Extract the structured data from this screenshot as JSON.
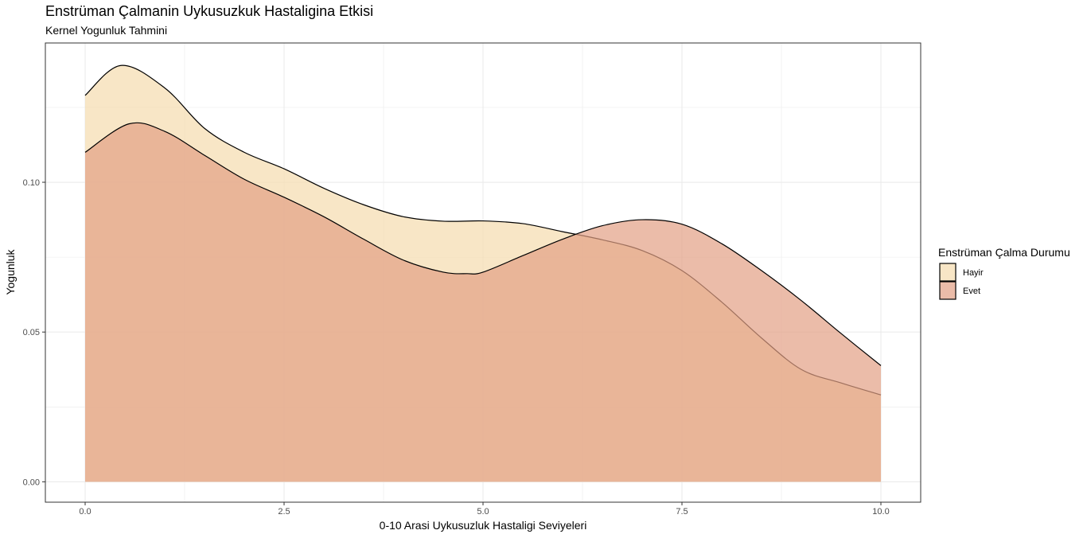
{
  "chart_data": {
    "type": "area",
    "subtype": "density",
    "title": "Enstrüman Çalmanin Uykusuzkuk Hastaligina Etkisi",
    "subtitle": "Kernel Yogunluk Tahmini",
    "xlabel": "0-10 Arasi Uykusuzluk Hastaligi Seviyeleri",
    "ylabel": "Yogunluk",
    "xlim": [
      -0.5,
      10.5
    ],
    "ylim": [
      -0.0068,
      0.1465
    ],
    "x_ticks": [
      0.0,
      2.5,
      5.0,
      7.5,
      10.0
    ],
    "x_tick_labels": [
      "0.0",
      "2.5",
      "5.0",
      "7.5",
      "10.0"
    ],
    "y_ticks": [
      0.0,
      0.05,
      0.1
    ],
    "y_tick_labels": [
      "0.00",
      "0.05",
      "0.10"
    ],
    "grid": true,
    "legend_title": "Enstrüman Çalma Durumu",
    "legend_position": "right",
    "series": [
      {
        "name": "Hayir",
        "color": "#f5deb3",
        "x": [
          0,
          0.45,
          1,
          1.5,
          2,
          2.5,
          3,
          3.5,
          4,
          4.5,
          5,
          5.5,
          6,
          6.5,
          7,
          7.5,
          8,
          8.5,
          9,
          9.5,
          10
        ],
        "y": [
          0.129,
          0.139,
          0.1315,
          0.118,
          0.11,
          0.1045,
          0.098,
          0.0925,
          0.0885,
          0.087,
          0.0871,
          0.0862,
          0.0835,
          0.0808,
          0.0772,
          0.0705,
          0.06,
          0.048,
          0.0375,
          0.033,
          0.029
        ]
      },
      {
        "name": "Evet",
        "color": "#e2a085",
        "x": [
          0,
          0.55,
          1,
          1.5,
          2,
          2.5,
          3,
          3.5,
          4,
          4.5,
          4.8,
          5,
          5.5,
          6,
          6.5,
          7,
          7.5,
          8,
          8.5,
          9,
          9.5,
          10
        ],
        "y": [
          0.11,
          0.1195,
          0.117,
          0.109,
          0.101,
          0.095,
          0.0885,
          0.081,
          0.074,
          0.07,
          0.0695,
          0.07,
          0.0755,
          0.081,
          0.0855,
          0.0875,
          0.086,
          0.0795,
          0.0705,
          0.0605,
          0.0495,
          0.0388
        ]
      }
    ]
  }
}
